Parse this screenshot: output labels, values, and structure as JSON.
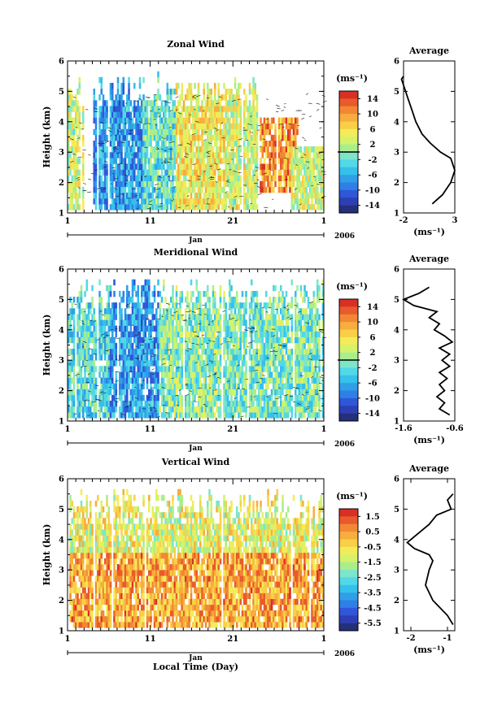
{
  "panels": [
    {
      "title": "Zonal Wind",
      "units_label": "(ms⁻¹)",
      "colorbar_ticks": [
        "14",
        "10",
        "6",
        "2",
        "-2",
        "-6",
        "-10",
        "-14"
      ],
      "profile_title": "Average",
      "profile_units": "(ms⁻¹)",
      "profile_xticks": [
        "-2",
        "3"
      ],
      "show_xlabel": false
    },
    {
      "title": "Meridional Wind",
      "units_label": "(ms⁻¹)",
      "colorbar_ticks": [
        "14",
        "10",
        "6",
        "2",
        "-2",
        "-6",
        "-10",
        "-14"
      ],
      "profile_title": "Average",
      "profile_units": "(ms⁻¹)",
      "profile_xticks": [
        "-1.6",
        "-0.6"
      ],
      "show_xlabel": false
    },
    {
      "title": "Vertical Wind",
      "units_label": "(ms⁻¹)",
      "colorbar_ticks": [
        "1.5",
        "0.5",
        "-0.5",
        "-1.5",
        "-2.5",
        "-3.5",
        "-4.5",
        "-5.5"
      ],
      "profile_title": "Average",
      "profile_units": "(ms⁻¹)",
      "profile_xticks": [
        "-2",
        "-1"
      ],
      "show_xlabel": true
    }
  ],
  "shared": {
    "ylabel": "Height (km)",
    "yticks": [
      "1",
      "2",
      "3",
      "4",
      "5",
      "6"
    ],
    "xticks": [
      "1",
      "11",
      "21",
      "1"
    ],
    "month": "Jan",
    "year": "2006",
    "xlabel": "Local Time (Day)"
  },
  "chart_data": [
    {
      "type": "heatmap",
      "title": "Zonal Wind",
      "ylabel": "Height (km)",
      "x_ticks": [
        "1",
        "11",
        "21",
        "1"
      ],
      "month_label": "Jan",
      "year_label": "2006",
      "ylim": [
        1,
        6
      ],
      "colorbar": {
        "units": "(ms⁻¹)",
        "ticks": [
          14,
          10,
          6,
          2,
          -2,
          -6,
          -10,
          -14
        ],
        "zero_line": true
      },
      "regimes": [
        {
          "x_range": [
            1,
            3
          ],
          "h_range": [
            1,
            5.6
          ],
          "typical": 3
        },
        {
          "x_range": [
            4,
            10
          ],
          "h_range": [
            1,
            5.6
          ],
          "typical": -7
        },
        {
          "x_range": [
            10,
            14
          ],
          "h_range": [
            1,
            5.6
          ],
          "typical": -2
        },
        {
          "x_range": [
            14,
            20
          ],
          "h_range": [
            1,
            5.2
          ],
          "typical": 5
        },
        {
          "x_range": [
            20,
            24
          ],
          "h_range": [
            1,
            5.6
          ],
          "typical": 3
        },
        {
          "x_range": [
            24,
            29
          ],
          "h_range": [
            1.5,
            4
          ],
          "typical": 10
        },
        {
          "x_range": [
            28,
            32
          ],
          "h_range": [
            1,
            3
          ],
          "typical": 3
        }
      ],
      "average_profile": {
        "title": "Average",
        "units": "(ms⁻¹)",
        "xlim": [
          -2,
          3
        ],
        "xticks": [
          -2,
          3
        ],
        "height": [
          1.3,
          1.6,
          2.0,
          2.4,
          2.8,
          3.0,
          3.3,
          3.6,
          4.0,
          4.4,
          4.8,
          5.0,
          5.2,
          5.4,
          5.5
        ],
        "value": [
          0.8,
          1.8,
          2.6,
          3.0,
          2.6,
          1.6,
          0.6,
          -0.2,
          -0.8,
          -1.2,
          -1.6,
          -1.8,
          -2.0,
          -2.2,
          -2.0
        ]
      }
    },
    {
      "type": "heatmap",
      "title": "Meridional Wind",
      "ylabel": "Height (km)",
      "x_ticks": [
        "1",
        "11",
        "21",
        "1"
      ],
      "month_label": "Jan",
      "year_label": "2006",
      "ylim": [
        1,
        6
      ],
      "colorbar": {
        "units": "(ms⁻¹)",
        "ticks": [
          14,
          10,
          6,
          2,
          -2,
          -6,
          -10,
          -14
        ],
        "zero_line": true
      },
      "regimes": [
        {
          "x_range": [
            1,
            6
          ],
          "h_range": [
            1,
            5.6
          ],
          "typical": -3
        },
        {
          "x_range": [
            6,
            12
          ],
          "h_range": [
            1,
            5.6
          ],
          "typical": -7
        },
        {
          "x_range": [
            12,
            20
          ],
          "h_range": [
            1,
            5.6
          ],
          "typical": 0
        },
        {
          "x_range": [
            20,
            32
          ],
          "h_range": [
            1,
            5.6
          ],
          "typical": -1
        }
      ],
      "average_profile": {
        "title": "Average",
        "units": "(ms⁻¹)",
        "xlim": [
          -1.6,
          -0.6
        ],
        "xticks": [
          -1.6,
          -0.6
        ],
        "height": [
          1.2,
          1.4,
          1.6,
          1.8,
          2.0,
          2.2,
          2.4,
          2.6,
          2.8,
          3.0,
          3.2,
          3.4,
          3.6,
          3.8,
          4.0,
          4.2,
          4.4,
          4.6,
          4.8,
          5.0,
          5.2,
          5.4
        ],
        "value": [
          -0.7,
          -0.9,
          -0.8,
          -0.95,
          -0.8,
          -0.9,
          -0.75,
          -0.9,
          -0.7,
          -0.85,
          -0.7,
          -0.9,
          -0.65,
          -0.8,
          -1.0,
          -0.9,
          -1.1,
          -0.95,
          -1.4,
          -1.6,
          -1.3,
          -1.1
        ]
      }
    },
    {
      "type": "heatmap",
      "title": "Vertical Wind",
      "ylabel": "Height (km)",
      "xlabel": "Local Time (Day)",
      "x_ticks": [
        "1",
        "11",
        "21",
        "1"
      ],
      "month_label": "Jan",
      "year_label": "2006",
      "ylim": [
        1,
        6
      ],
      "colorbar": {
        "units": "(ms⁻¹)",
        "ticks": [
          1.5,
          0.5,
          -0.5,
          -1.5,
          -2.5,
          -3.5,
          -4.5,
          -5.5
        ],
        "zero_line": false
      },
      "regimes": [
        {
          "x_range": [
            1,
            32
          ],
          "h_range": [
            1,
            3.5
          ],
          "typical": 0.3
        },
        {
          "x_range": [
            1,
            32
          ],
          "h_range": [
            3.5,
            5.6
          ],
          "typical": -1.0
        }
      ],
      "average_profile": {
        "title": "Average",
        "units": "(ms⁻¹)",
        "xlim": [
          -2.2,
          -0.8
        ],
        "xticks": [
          -2,
          -1
        ],
        "height": [
          1.2,
          1.5,
          2.0,
          2.5,
          3.0,
          3.3,
          3.5,
          3.7,
          3.9,
          4.0,
          4.2,
          4.5,
          4.8,
          5.0,
          5.3,
          5.5
        ],
        "value": [
          -0.85,
          -1.0,
          -1.4,
          -1.6,
          -1.5,
          -1.4,
          -1.5,
          -1.9,
          -2.1,
          -2.0,
          -1.8,
          -1.5,
          -1.3,
          -0.9,
          -1.0,
          -0.85
        ]
      }
    }
  ]
}
